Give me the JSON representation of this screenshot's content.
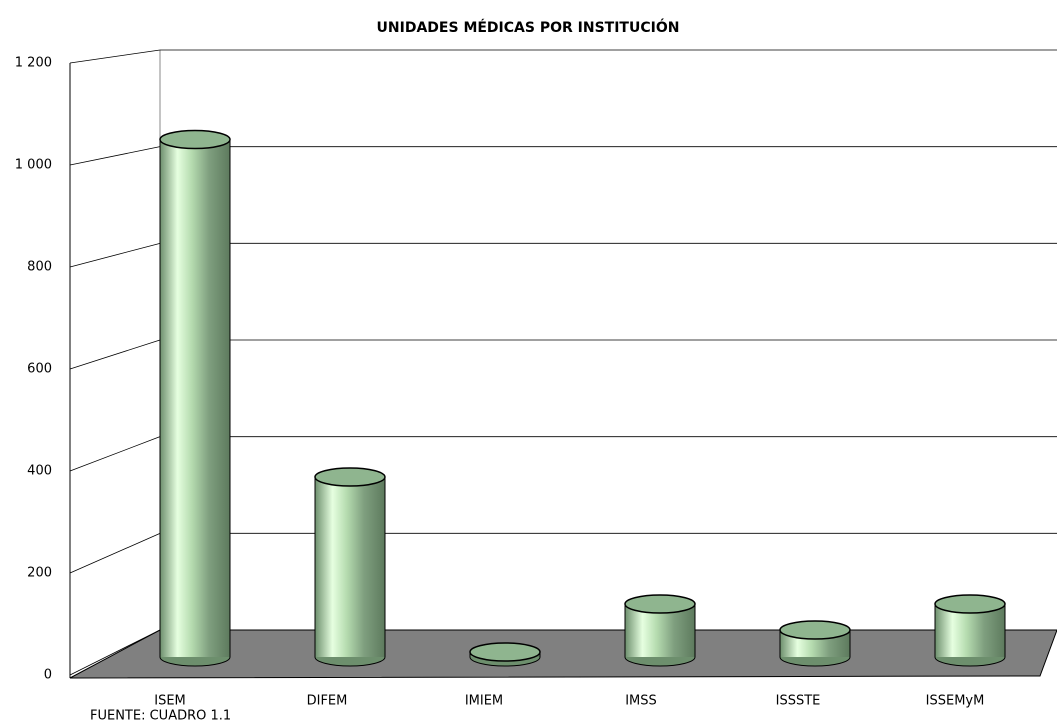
{
  "chart_data": {
    "type": "bar",
    "title": "UNIDADES MÉDICAS POR INSTITUCIÓN",
    "categories": [
      "ISEM",
      "DIFEM",
      "IMIEM",
      "IMSS",
      "ISSSTE",
      "ISSEMyM"
    ],
    "values": [
      1035,
      360,
      10,
      106,
      54,
      106
    ],
    "color": "#8fb58f",
    "ylim": [
      0,
      1200
    ],
    "yticks": [
      0,
      200,
      400,
      600,
      800,
      {
        "value": 1000,
        "label": "1 000"
      },
      {
        "value": 1200,
        "label": "1 200"
      }
    ],
    "grid": true,
    "source": "FUENTE: CUADRO 1.1"
  }
}
